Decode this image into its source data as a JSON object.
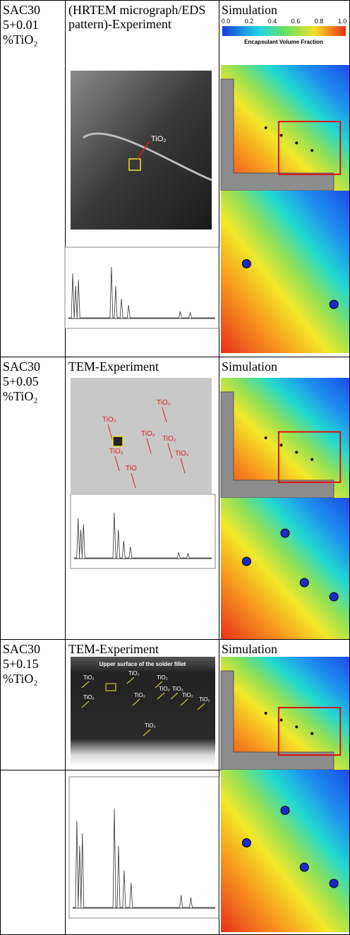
{
  "rows": [
    {
      "sample": [
        "SAC30",
        "5+0.01",
        "%TiO₂"
      ],
      "experiment": "(HRTEM micrograph/EDS pattern)-Experiment",
      "simulation": "Simulation",
      "annotations": [
        "TiO₂"
      ]
    },
    {
      "sample": [
        "SAC30",
        "5+0.05",
        "%TiO₂"
      ],
      "experiment": "TEM-Experiment",
      "simulation": "Simulation",
      "annotations": [
        "TiO₂",
        "TiO₂",
        "TiO₂",
        "TiO₂",
        "TiO₂",
        "TiO",
        "TiO₂"
      ]
    },
    {
      "sample": [
        "SAC30",
        "5+0.15",
        "%TiO₂"
      ],
      "experiment": "TEM-Experiment",
      "simulation": "Simulation",
      "annotations": [
        "Upper surface of the solder fillet",
        "TiO₂",
        "TiO₂",
        "TiO₂",
        "TiO₂",
        "TiO₂",
        "TiO₂",
        "TiO₂",
        "TiO₂",
        "TiO₂",
        "TiO₂"
      ]
    }
  ],
  "colorbar": {
    "ticks": [
      "0.0",
      "0.2",
      "0.4",
      "0.6",
      "0.8",
      "1.0"
    ],
    "title": "Encapsulant Volume Fraction"
  }
}
